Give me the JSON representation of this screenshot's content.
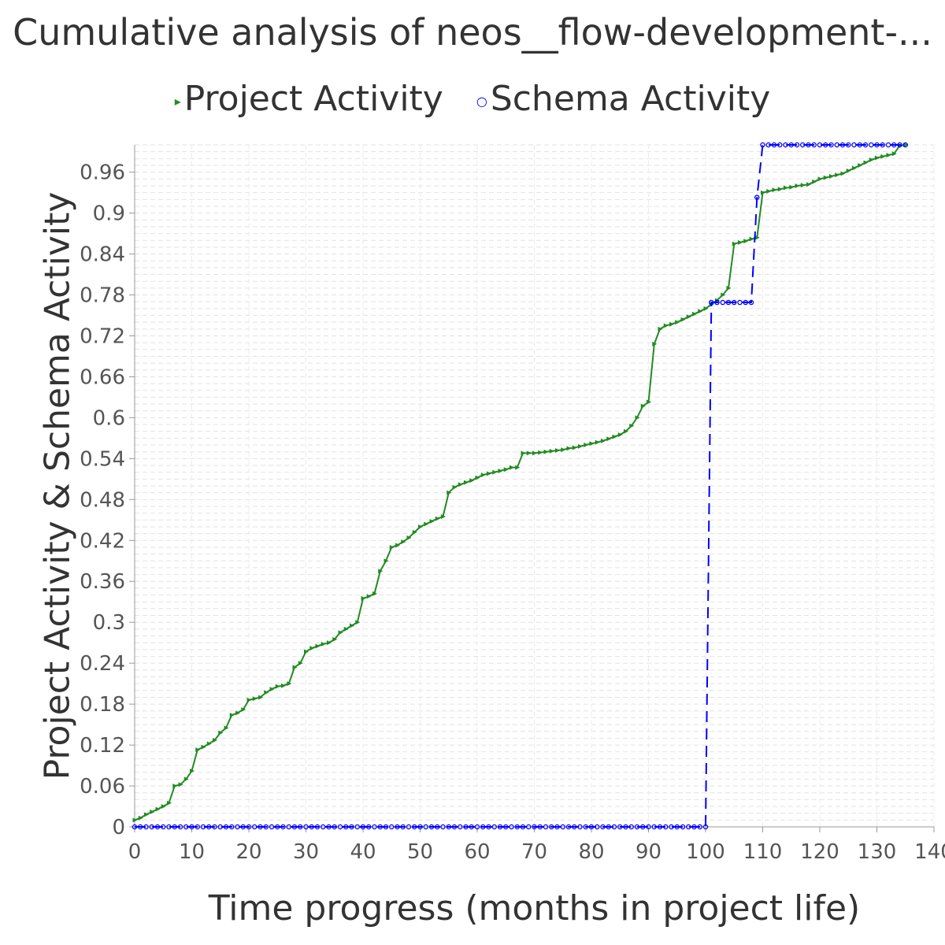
{
  "chart_data": {
    "type": "line",
    "title": "Cumulative analysis of neos__flow-development-...",
    "xlabel": "Time progress (months in project life)",
    "ylabel": "Project Activity & Schema Activity",
    "xlim": [
      0,
      140
    ],
    "ylim": [
      0,
      1.0
    ],
    "x_ticks": [
      0,
      10,
      20,
      30,
      40,
      50,
      60,
      70,
      80,
      90,
      100,
      110,
      120,
      130,
      140
    ],
    "y_ticks": [
      "0",
      "0.06",
      "0.12",
      "0.18",
      "0.24",
      "0.3",
      "0.36",
      "0.42",
      "0.48",
      "0.54",
      "0.6",
      "0.66",
      "0.72",
      "0.78",
      "0.84",
      "0.9",
      "0.96"
    ],
    "y_tick_values": [
      0,
      0.06,
      0.12,
      0.18,
      0.24,
      0.3,
      0.36,
      0.42,
      0.48,
      0.54,
      0.6,
      0.66,
      0.72,
      0.78,
      0.84,
      0.9,
      0.96
    ],
    "grid": true,
    "legend_position": "top",
    "series": [
      {
        "name": "Project Activity",
        "color": "#228B22",
        "marker": "triangle-right",
        "style": "solid",
        "points": [
          [
            0,
            0.01
          ],
          [
            1,
            0.013
          ],
          [
            2,
            0.018
          ],
          [
            3,
            0.022
          ],
          [
            4,
            0.026
          ],
          [
            5,
            0.03
          ],
          [
            6,
            0.035
          ],
          [
            7,
            0.06
          ],
          [
            8,
            0.062
          ],
          [
            9,
            0.07
          ],
          [
            10,
            0.082
          ],
          [
            11,
            0.113
          ],
          [
            12,
            0.117
          ],
          [
            13,
            0.122
          ],
          [
            14,
            0.127
          ],
          [
            15,
            0.138
          ],
          [
            16,
            0.145
          ],
          [
            17,
            0.164
          ],
          [
            18,
            0.167
          ],
          [
            19,
            0.172
          ],
          [
            20,
            0.186
          ],
          [
            21,
            0.188
          ],
          [
            22,
            0.19
          ],
          [
            23,
            0.197
          ],
          [
            24,
            0.202
          ],
          [
            25,
            0.206
          ],
          [
            26,
            0.207
          ],
          [
            27,
            0.21
          ],
          [
            28,
            0.234
          ],
          [
            29,
            0.24
          ],
          [
            30,
            0.257
          ],
          [
            31,
            0.262
          ],
          [
            32,
            0.265
          ],
          [
            33,
            0.268
          ],
          [
            34,
            0.27
          ],
          [
            35,
            0.275
          ],
          [
            36,
            0.285
          ],
          [
            37,
            0.29
          ],
          [
            38,
            0.295
          ],
          [
            39,
            0.3
          ],
          [
            40,
            0.335
          ],
          [
            41,
            0.338
          ],
          [
            42,
            0.342
          ],
          [
            43,
            0.375
          ],
          [
            44,
            0.39
          ],
          [
            45,
            0.41
          ],
          [
            46,
            0.413
          ],
          [
            47,
            0.418
          ],
          [
            48,
            0.424
          ],
          [
            49,
            0.432
          ],
          [
            50,
            0.44
          ],
          [
            51,
            0.444
          ],
          [
            52,
            0.448
          ],
          [
            53,
            0.452
          ],
          [
            54,
            0.455
          ],
          [
            55,
            0.49
          ],
          [
            56,
            0.498
          ],
          [
            57,
            0.502
          ],
          [
            58,
            0.505
          ],
          [
            59,
            0.508
          ],
          [
            60,
            0.512
          ],
          [
            61,
            0.516
          ],
          [
            62,
            0.518
          ],
          [
            63,
            0.52
          ],
          [
            64,
            0.522
          ],
          [
            65,
            0.524
          ],
          [
            66,
            0.527
          ],
          [
            67,
            0.527
          ],
          [
            68,
            0.548
          ],
          [
            69,
            0.548
          ],
          [
            70,
            0.548
          ],
          [
            71,
            0.549
          ],
          [
            72,
            0.55
          ],
          [
            73,
            0.551
          ],
          [
            74,
            0.552
          ],
          [
            75,
            0.553
          ],
          [
            76,
            0.555
          ],
          [
            77,
            0.556
          ],
          [
            78,
            0.558
          ],
          [
            79,
            0.56
          ],
          [
            80,
            0.562
          ],
          [
            81,
            0.564
          ],
          [
            82,
            0.566
          ],
          [
            83,
            0.569
          ],
          [
            84,
            0.572
          ],
          [
            85,
            0.575
          ],
          [
            86,
            0.58
          ],
          [
            87,
            0.588
          ],
          [
            88,
            0.6
          ],
          [
            89,
            0.617
          ],
          [
            90,
            0.623
          ],
          [
            91,
            0.708
          ],
          [
            92,
            0.73
          ],
          [
            93,
            0.735
          ],
          [
            94,
            0.737
          ],
          [
            95,
            0.74
          ],
          [
            96,
            0.744
          ],
          [
            97,
            0.748
          ],
          [
            98,
            0.752
          ],
          [
            99,
            0.756
          ],
          [
            100,
            0.76
          ],
          [
            101,
            0.766
          ],
          [
            102,
            0.772
          ],
          [
            103,
            0.78
          ],
          [
            104,
            0.79
          ],
          [
            105,
            0.855
          ],
          [
            106,
            0.857
          ],
          [
            107,
            0.859
          ],
          [
            108,
            0.862
          ],
          [
            109,
            0.864
          ],
          [
            110,
            0.93
          ],
          [
            111,
            0.932
          ],
          [
            112,
            0.934
          ],
          [
            113,
            0.935
          ],
          [
            114,
            0.937
          ],
          [
            115,
            0.938
          ],
          [
            116,
            0.94
          ],
          [
            117,
            0.941
          ],
          [
            118,
            0.942
          ],
          [
            119,
            0.946
          ],
          [
            120,
            0.95
          ],
          [
            121,
            0.952
          ],
          [
            122,
            0.954
          ],
          [
            123,
            0.956
          ],
          [
            124,
            0.958
          ],
          [
            125,
            0.962
          ],
          [
            126,
            0.966
          ],
          [
            127,
            0.97
          ],
          [
            128,
            0.974
          ],
          [
            129,
            0.978
          ],
          [
            130,
            0.981
          ],
          [
            131,
            0.983
          ],
          [
            132,
            0.985
          ],
          [
            133,
            0.987
          ],
          [
            134,
            0.999
          ],
          [
            135,
            1.0
          ]
        ]
      },
      {
        "name": "Schema Activity",
        "color": "#0000ff",
        "marker": "circle",
        "style": "dashed",
        "points": [
          [
            0,
            0
          ],
          [
            1,
            0
          ],
          [
            2,
            0
          ],
          [
            3,
            0
          ],
          [
            4,
            0
          ],
          [
            5,
            0
          ],
          [
            6,
            0
          ],
          [
            7,
            0
          ],
          [
            8,
            0
          ],
          [
            9,
            0
          ],
          [
            10,
            0
          ],
          [
            11,
            0
          ],
          [
            12,
            0
          ],
          [
            13,
            0
          ],
          [
            14,
            0
          ],
          [
            15,
            0
          ],
          [
            16,
            0
          ],
          [
            17,
            0
          ],
          [
            18,
            0
          ],
          [
            19,
            0
          ],
          [
            20,
            0
          ],
          [
            21,
            0
          ],
          [
            22,
            0
          ],
          [
            23,
            0
          ],
          [
            24,
            0
          ],
          [
            25,
            0
          ],
          [
            26,
            0
          ],
          [
            27,
            0
          ],
          [
            28,
            0
          ],
          [
            29,
            0
          ],
          [
            30,
            0
          ],
          [
            31,
            0
          ],
          [
            32,
            0
          ],
          [
            33,
            0
          ],
          [
            34,
            0
          ],
          [
            35,
            0
          ],
          [
            36,
            0
          ],
          [
            37,
            0
          ],
          [
            38,
            0
          ],
          [
            39,
            0
          ],
          [
            40,
            0
          ],
          [
            41,
            0
          ],
          [
            42,
            0
          ],
          [
            43,
            0
          ],
          [
            44,
            0
          ],
          [
            45,
            0
          ],
          [
            46,
            0
          ],
          [
            47,
            0
          ],
          [
            48,
            0
          ],
          [
            49,
            0
          ],
          [
            50,
            0
          ],
          [
            51,
            0
          ],
          [
            52,
            0
          ],
          [
            53,
            0
          ],
          [
            54,
            0
          ],
          [
            55,
            0
          ],
          [
            56,
            0
          ],
          [
            57,
            0
          ],
          [
            58,
            0
          ],
          [
            59,
            0
          ],
          [
            60,
            0
          ],
          [
            61,
            0
          ],
          [
            62,
            0
          ],
          [
            63,
            0
          ],
          [
            64,
            0
          ],
          [
            65,
            0
          ],
          [
            66,
            0
          ],
          [
            67,
            0
          ],
          [
            68,
            0
          ],
          [
            69,
            0
          ],
          [
            70,
            0
          ],
          [
            71,
            0
          ],
          [
            72,
            0
          ],
          [
            73,
            0
          ],
          [
            74,
            0
          ],
          [
            75,
            0
          ],
          [
            76,
            0
          ],
          [
            77,
            0
          ],
          [
            78,
            0
          ],
          [
            79,
            0
          ],
          [
            80,
            0
          ],
          [
            81,
            0
          ],
          [
            82,
            0
          ],
          [
            83,
            0
          ],
          [
            84,
            0
          ],
          [
            85,
            0
          ],
          [
            86,
            0
          ],
          [
            87,
            0
          ],
          [
            88,
            0
          ],
          [
            89,
            0
          ],
          [
            90,
            0
          ],
          [
            91,
            0
          ],
          [
            92,
            0
          ],
          [
            93,
            0
          ],
          [
            94,
            0
          ],
          [
            95,
            0
          ],
          [
            96,
            0
          ],
          [
            97,
            0
          ],
          [
            98,
            0
          ],
          [
            99,
            0
          ],
          [
            100,
            0
          ],
          [
            101,
            0.769
          ],
          [
            102,
            0.769
          ],
          [
            103,
            0.769
          ],
          [
            104,
            0.769
          ],
          [
            105,
            0.769
          ],
          [
            106,
            0.769
          ],
          [
            107,
            0.769
          ],
          [
            108,
            0.769
          ],
          [
            109,
            0.923
          ],
          [
            110,
            1.0
          ],
          [
            111,
            1.0
          ],
          [
            112,
            1.0
          ],
          [
            113,
            1.0
          ],
          [
            114,
            1.0
          ],
          [
            115,
            1.0
          ],
          [
            116,
            1.0
          ],
          [
            117,
            1.0
          ],
          [
            118,
            1.0
          ],
          [
            119,
            1.0
          ],
          [
            120,
            1.0
          ],
          [
            121,
            1.0
          ],
          [
            122,
            1.0
          ],
          [
            123,
            1.0
          ],
          [
            124,
            1.0
          ],
          [
            125,
            1.0
          ],
          [
            126,
            1.0
          ],
          [
            127,
            1.0
          ],
          [
            128,
            1.0
          ],
          [
            129,
            1.0
          ],
          [
            130,
            1.0
          ],
          [
            131,
            1.0
          ],
          [
            132,
            1.0
          ],
          [
            133,
            1.0
          ],
          [
            134,
            1.0
          ],
          [
            135,
            1.0
          ]
        ]
      }
    ]
  }
}
